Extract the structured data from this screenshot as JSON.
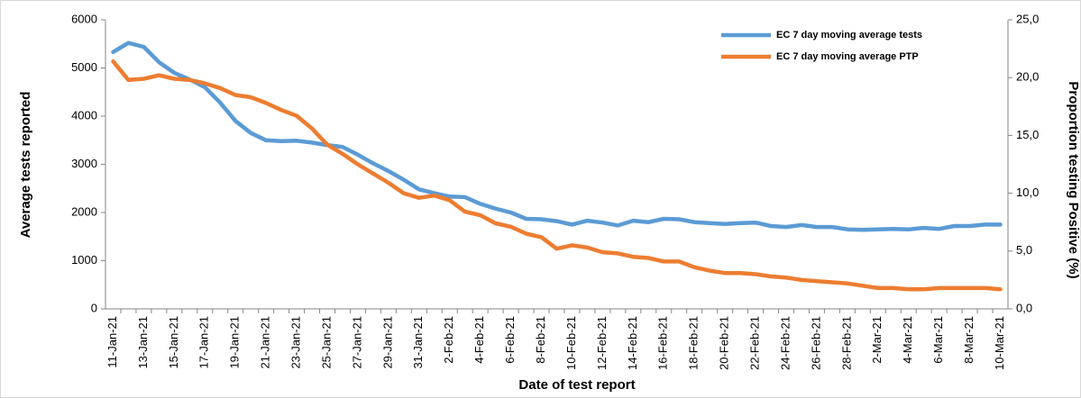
{
  "chart_data": {
    "type": "line",
    "x_label": "Date of test report",
    "y_label": "Average tests reported",
    "y2_label": "Proportion testing Positive (%)",
    "categories": [
      "11-Jan-21",
      null,
      "13-Jan-21",
      null,
      "15-Jan-21",
      null,
      "17-Jan-21",
      null,
      "19-Jan-21",
      null,
      "21-Jan-21",
      null,
      "23-Jan-21",
      null,
      "25-Jan-21",
      null,
      "27-Jan-21",
      null,
      "29-Jan-21",
      null,
      "31-Jan-21",
      null,
      "2-Feb-21",
      null,
      "4-Feb-21",
      null,
      "6-Feb-21",
      null,
      "8-Feb-21",
      null,
      "10-Feb-21",
      null,
      "12-Feb-21",
      null,
      "14-Feb-21",
      null,
      "16-Feb-21",
      null,
      "18-Feb-21",
      null,
      "20-Feb-21",
      null,
      "22-Feb-21",
      null,
      "24-Feb-21",
      null,
      "26-Feb-21",
      null,
      "28-Feb-21",
      null,
      "2-Mar-21",
      null,
      "4-Mar-21",
      null,
      "6-Mar-21",
      null,
      "8-Mar-21",
      null,
      "10-Mar-21"
    ],
    "series": [
      {
        "name": "EC 7 day moving average tests",
        "color": "#5b9bd5",
        "values": [
          5330,
          5520,
          5440,
          5120,
          4900,
          4760,
          4600,
          4280,
          3900,
          3650,
          3500,
          3480,
          3490,
          3450,
          3400,
          3360,
          3200,
          3020,
          2860,
          2680,
          2480,
          2400,
          2330,
          2320,
          2180,
          2080,
          2000,
          1870,
          1860,
          1820,
          1750,
          1830,
          1790,
          1730,
          1830,
          1800,
          1870,
          1860,
          1800,
          1780,
          1760,
          1780,
          1790,
          1720,
          1700,
          1740,
          1700,
          1700,
          1650,
          1640,
          1650,
          1660,
          1650,
          1680,
          1660,
          1720,
          1720,
          1750,
          1750
        ]
      },
      {
        "name": "EC 7 day moving average PTP",
        "color": "#ed7d31",
        "axis": "y2",
        "values": [
          21.4,
          19.8,
          19.9,
          20.2,
          19.9,
          19.8,
          19.5,
          19.1,
          18.5,
          18.3,
          17.8,
          17.2,
          16.7,
          15.6,
          14.2,
          13.4,
          12.5,
          11.7,
          10.9,
          10.0,
          9.6,
          9.8,
          9.4,
          8.4,
          8.1,
          7.4,
          7.1,
          6.5,
          6.2,
          5.2,
          5.5,
          5.3,
          4.9,
          4.8,
          4.5,
          4.4,
          4.1,
          4.1,
          3.6,
          3.3,
          3.1,
          3.1,
          3.0,
          2.8,
          2.7,
          2.5,
          2.4,
          2.3,
          2.2,
          2.0,
          1.8,
          1.8,
          1.7,
          1.7,
          1.8,
          1.8,
          1.8,
          1.8,
          1.7
        ]
      }
    ],
    "ylim": [
      0,
      6000
    ],
    "yticks": [
      0,
      1000,
      2000,
      3000,
      4000,
      5000,
      6000
    ],
    "y2lim": [
      0,
      25
    ],
    "y2ticks": [
      {
        "value": 0,
        "label": "0,0"
      },
      {
        "value": 5,
        "label": "5,0"
      },
      {
        "value": 10,
        "label": "10,0"
      },
      {
        "value": 15,
        "label": "15,0"
      },
      {
        "value": 20,
        "label": "20,0"
      },
      {
        "value": 25,
        "label": "25,0"
      }
    ],
    "legend": "top-right",
    "grid": false
  }
}
